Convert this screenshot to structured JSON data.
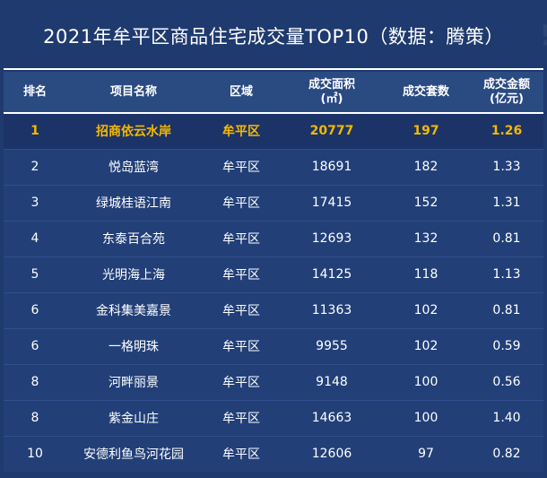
{
  "title": "2021年牟平区商品住宅成交量TOP10（数据：腾策）",
  "watermark": "house",
  "columns": [
    "排名",
    "项目名称",
    "区域",
    "成交面积\n(㎡)",
    "成交套数",
    "成交金额\n(亿元)"
  ],
  "rows": [
    {
      "rank": "1",
      "name": "招商依云水岸",
      "area": "牟平区",
      "size": "20777",
      "units": "197",
      "amount": "1.26"
    },
    {
      "rank": "2",
      "name": "悦岛蓝湾",
      "area": "牟平区",
      "size": "18691",
      "units": "182",
      "amount": "1.33"
    },
    {
      "rank": "3",
      "name": "绿城桂语江南",
      "area": "牟平区",
      "size": "17415",
      "units": "152",
      "amount": "1.31"
    },
    {
      "rank": "4",
      "name": "东泰百合苑",
      "area": "牟平区",
      "size": "12693",
      "units": "132",
      "amount": "0.81"
    },
    {
      "rank": "5",
      "name": "光明海上海",
      "area": "牟平区",
      "size": "14125",
      "units": "118",
      "amount": "1.13"
    },
    {
      "rank": "6",
      "name": "金科集美嘉景",
      "area": "牟平区",
      "size": "11363",
      "units": "102",
      "amount": "0.81"
    },
    {
      "rank": "6",
      "name": "一格明珠",
      "area": "牟平区",
      "size": "9955",
      "units": "102",
      "amount": "0.59"
    },
    {
      "rank": "8",
      "name": "河畔丽景",
      "area": "牟平区",
      "size": "9148",
      "units": "100",
      "amount": "0.56"
    },
    {
      "rank": "8",
      "name": "紫金山庄",
      "area": "牟平区",
      "size": "14663",
      "units": "100",
      "amount": "1.40"
    },
    {
      "rank": "10",
      "name": "安德利鱼鸟河花园",
      "area": "牟平区",
      "size": "12606",
      "units": "97",
      "amount": "0.82"
    }
  ],
  "colors": {
    "background": "#1f3a6e",
    "highlight_text": "#f5b800",
    "text": "#ffffff"
  }
}
